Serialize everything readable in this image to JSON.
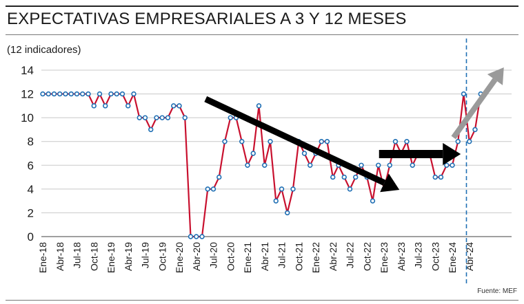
{
  "header": {
    "title": "EXPECTATIVAS EMPRESARIALES A 3 Y 12 MESES",
    "subtitle": "(12 indicadores)"
  },
  "footer": {
    "source": "Fuente: MEF"
  },
  "colors": {
    "line": "#c8102e",
    "marker_fill": "#ffffff",
    "marker_stroke": "#1f6fb4",
    "grid": "#c8c8c8",
    "arrow_black": "#000000",
    "arrow_gray": "#9a9a9a",
    "dashed_marker": "#1f6fb4"
  },
  "chart_data": {
    "type": "line",
    "title": "EXPECTATIVAS EMPRESARIALES A 3 Y 12 MESES",
    "ylabel": "(12 indicadores)",
    "ylim": [
      0,
      14
    ],
    "yticks": [
      0,
      2,
      4,
      6,
      8,
      10,
      12,
      14
    ],
    "grid": true,
    "x_tick_labels": [
      "Ene-18",
      "Abr-18",
      "Jul-18",
      "Oct-18",
      "Ene-19",
      "Abr-19",
      "Jul-19",
      "Oct-19",
      "Ene-20",
      "Abr-20",
      "Jul-20",
      "Oct-20",
      "Ene-21",
      "Abr-21",
      "Jul-21",
      "Oct-21",
      "Ene-22",
      "Abr-22",
      "Jul-22",
      "Oct-22",
      "Ene-23",
      "Abr-23",
      "Jul-23",
      "Oct-23",
      "Ene-24",
      "Abr-24"
    ],
    "x": [
      "2018-01",
      "2018-02",
      "2018-03",
      "2018-04",
      "2018-05",
      "2018-06",
      "2018-07",
      "2018-08",
      "2018-09",
      "2018-10",
      "2018-11",
      "2018-12",
      "2019-01",
      "2019-02",
      "2019-03",
      "2019-04",
      "2019-05",
      "2019-06",
      "2019-07",
      "2019-08",
      "2019-09",
      "2019-10",
      "2019-11",
      "2019-12",
      "2020-01",
      "2020-02",
      "2020-03",
      "2020-04",
      "2020-05",
      "2020-06",
      "2020-07",
      "2020-08",
      "2020-09",
      "2020-10",
      "2020-11",
      "2020-12",
      "2021-01",
      "2021-02",
      "2021-03",
      "2021-04",
      "2021-05",
      "2021-06",
      "2021-07",
      "2021-08",
      "2021-09",
      "2021-10",
      "2021-11",
      "2021-12",
      "2022-01",
      "2022-02",
      "2022-03",
      "2022-04",
      "2022-05",
      "2022-06",
      "2022-07",
      "2022-08",
      "2022-09",
      "2022-10",
      "2022-11",
      "2022-12",
      "2023-01",
      "2023-02",
      "2023-03",
      "2023-04",
      "2023-05",
      "2023-06",
      "2023-07",
      "2023-08",
      "2023-09",
      "2023-10",
      "2023-11",
      "2023-12",
      "2024-01",
      "2024-02",
      "2024-03",
      "2024-04",
      "2024-05",
      "2024-06"
    ],
    "series": [
      {
        "values": [
          12,
          12,
          12,
          12,
          12,
          12,
          12,
          12,
          12,
          11,
          12,
          11,
          12,
          12,
          12,
          11,
          12,
          10,
          10,
          9,
          10,
          10,
          10,
          11,
          11,
          10,
          0,
          0,
          0,
          4,
          4,
          5,
          8,
          10,
          10,
          8,
          6,
          7,
          11,
          6,
          8,
          3,
          4,
          2,
          4,
          8,
          7,
          6,
          7,
          8,
          8,
          5,
          6,
          5,
          4,
          5,
          6,
          5,
          3,
          6,
          4,
          6,
          8,
          7,
          8,
          6,
          7,
          7,
          7,
          5,
          5,
          6,
          6,
          8,
          12,
          8,
          9,
          12
        ]
      }
    ],
    "annotations": {
      "vertical_dashed_line_at": "2024-03",
      "arrows": [
        {
          "trend": "down",
          "from": "2020-06",
          "to": "2023-02",
          "color": "black"
        },
        {
          "trend": "flat",
          "from": "2022-12",
          "to": "2024-02",
          "color": "black"
        },
        {
          "trend": "up",
          "from": "2023-12",
          "to": "2024-08",
          "color": "gray"
        }
      ]
    }
  }
}
